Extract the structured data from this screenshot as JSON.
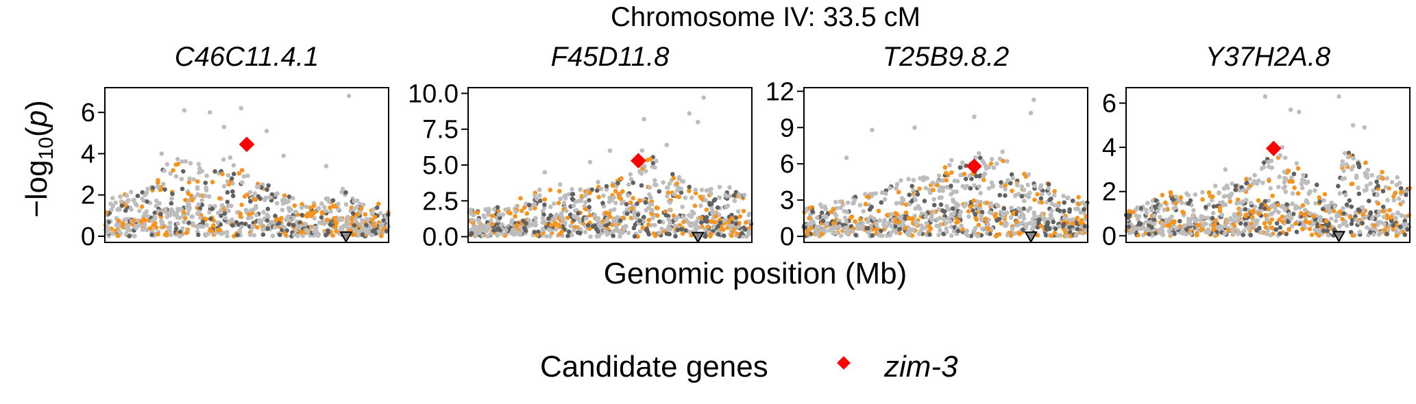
{
  "figure": {
    "title": "Chromosome IV: 33.5 cM",
    "ylabel_parts": [
      "−log",
      "10",
      "(",
      "p",
      ")"
    ],
    "xlabel": "Genomic position (Mb)",
    "legend": {
      "title": "Candidate genes",
      "item": "zim-3"
    },
    "colors": {
      "light": "#bdbdbd",
      "dark": "#616161",
      "orange": "#f7941d",
      "highlight": "#ff0000",
      "marker_fill": "#8c8c8c"
    }
  },
  "chart_data": [
    {
      "type": "scatter",
      "title": "C46C11.4.1",
      "xlim": [
        0,
        1
      ],
      "ylim": [
        -0.3,
        7.2
      ],
      "yticks": [
        0,
        2,
        4,
        6
      ],
      "ytick_labels": [
        "0",
        "2",
        "4",
        "6"
      ],
      "highlight": {
        "x": 0.5,
        "y": 4.45
      },
      "gene_marker": {
        "x": 0.85,
        "y": 0
      },
      "profile": [
        [
          0.0,
          1.6
        ],
        [
          0.15,
          2.2
        ],
        [
          0.25,
          3.6
        ],
        [
          0.35,
          3.2
        ],
        [
          0.45,
          3.5
        ],
        [
          0.52,
          3.0
        ],
        [
          0.6,
          2.0
        ],
        [
          0.72,
          1.4
        ],
        [
          0.85,
          2.2
        ],
        [
          0.92,
          1.5
        ],
        [
          1.0,
          1.4
        ]
      ],
      "peaks": [
        [
          0.28,
          6.1
        ],
        [
          0.37,
          6.0
        ],
        [
          0.42,
          5.3
        ],
        [
          0.48,
          6.2
        ],
        [
          0.57,
          5.1
        ],
        [
          0.86,
          6.8
        ],
        [
          0.78,
          3.4
        ],
        [
          0.2,
          4.0
        ],
        [
          0.63,
          3.9
        ]
      ]
    },
    {
      "type": "scatter",
      "title": "F45D11.8",
      "xlim": [
        0,
        1
      ],
      "ylim": [
        -0.4,
        10.4
      ],
      "yticks": [
        0,
        2.5,
        5,
        7.5,
        10
      ],
      "ytick_labels": [
        "0.0",
        "2.5",
        "5.0",
        "7.5",
        "10.0"
      ],
      "highlight": {
        "x": 0.6,
        "y": 5.3
      },
      "gene_marker": {
        "x": 0.81,
        "y": 0
      },
      "profile": [
        [
          0.0,
          1.8
        ],
        [
          0.15,
          2.2
        ],
        [
          0.3,
          3.4
        ],
        [
          0.45,
          3.5
        ],
        [
          0.55,
          4.0
        ],
        [
          0.62,
          5.8
        ],
        [
          0.72,
          4.0
        ],
        [
          0.82,
          3.2
        ],
        [
          0.9,
          3.4
        ],
        [
          1.0,
          2.4
        ]
      ],
      "peaks": [
        [
          0.5,
          6.0
        ],
        [
          0.62,
          8.2
        ],
        [
          0.78,
          8.6
        ],
        [
          0.83,
          9.7
        ],
        [
          0.81,
          8.0
        ],
        [
          0.43,
          5.2
        ],
        [
          0.27,
          4.5
        ],
        [
          0.7,
          6.4
        ]
      ]
    },
    {
      "type": "scatter",
      "title": "T25B9.8.2",
      "xlim": [
        0,
        1
      ],
      "ylim": [
        -0.5,
        12.3
      ],
      "yticks": [
        0,
        3,
        6,
        9,
        12
      ],
      "ytick_labels": [
        "0",
        "3",
        "6",
        "9",
        "12"
      ],
      "highlight": {
        "x": 0.6,
        "y": 5.8
      },
      "gene_marker": {
        "x": 0.8,
        "y": 0
      },
      "profile": [
        [
          0.0,
          2.4
        ],
        [
          0.15,
          3.0
        ],
        [
          0.3,
          4.2
        ],
        [
          0.45,
          4.6
        ],
        [
          0.58,
          6.8
        ],
        [
          0.68,
          6.0
        ],
        [
          0.8,
          5.0
        ],
        [
          0.9,
          3.5
        ],
        [
          1.0,
          3.0
        ]
      ],
      "peaks": [
        [
          0.24,
          8.8
        ],
        [
          0.39,
          9.0
        ],
        [
          0.6,
          9.9
        ],
        [
          0.8,
          10.2
        ],
        [
          0.81,
          11.3
        ],
        [
          0.7,
          7.0
        ],
        [
          0.52,
          6.3
        ],
        [
          0.15,
          6.5
        ]
      ]
    },
    {
      "type": "scatter",
      "title": "Y37H2A.8",
      "xlim": [
        0,
        1
      ],
      "ylim": [
        -0.3,
        6.7
      ],
      "yticks": [
        0,
        2,
        4,
        6
      ],
      "ytick_labels": [
        "0",
        "2",
        "4",
        "6"
      ],
      "highlight": {
        "x": 0.52,
        "y": 3.95
      },
      "gene_marker": {
        "x": 0.75,
        "y": 0
      },
      "profile": [
        [
          0.0,
          1.0
        ],
        [
          0.15,
          1.8
        ],
        [
          0.3,
          2.0
        ],
        [
          0.42,
          2.4
        ],
        [
          0.5,
          3.6
        ],
        [
          0.6,
          3.0
        ],
        [
          0.72,
          1.5
        ],
        [
          0.78,
          3.8
        ],
        [
          0.85,
          3.0
        ],
        [
          1.0,
          2.2
        ]
      ],
      "peaks": [
        [
          0.49,
          6.3
        ],
        [
          0.58,
          5.7
        ],
        [
          0.61,
          5.6
        ],
        [
          0.75,
          6.3
        ],
        [
          0.8,
          5.0
        ],
        [
          0.84,
          4.9
        ],
        [
          0.55,
          4.0
        ],
        [
          0.35,
          3.0
        ]
      ]
    }
  ]
}
